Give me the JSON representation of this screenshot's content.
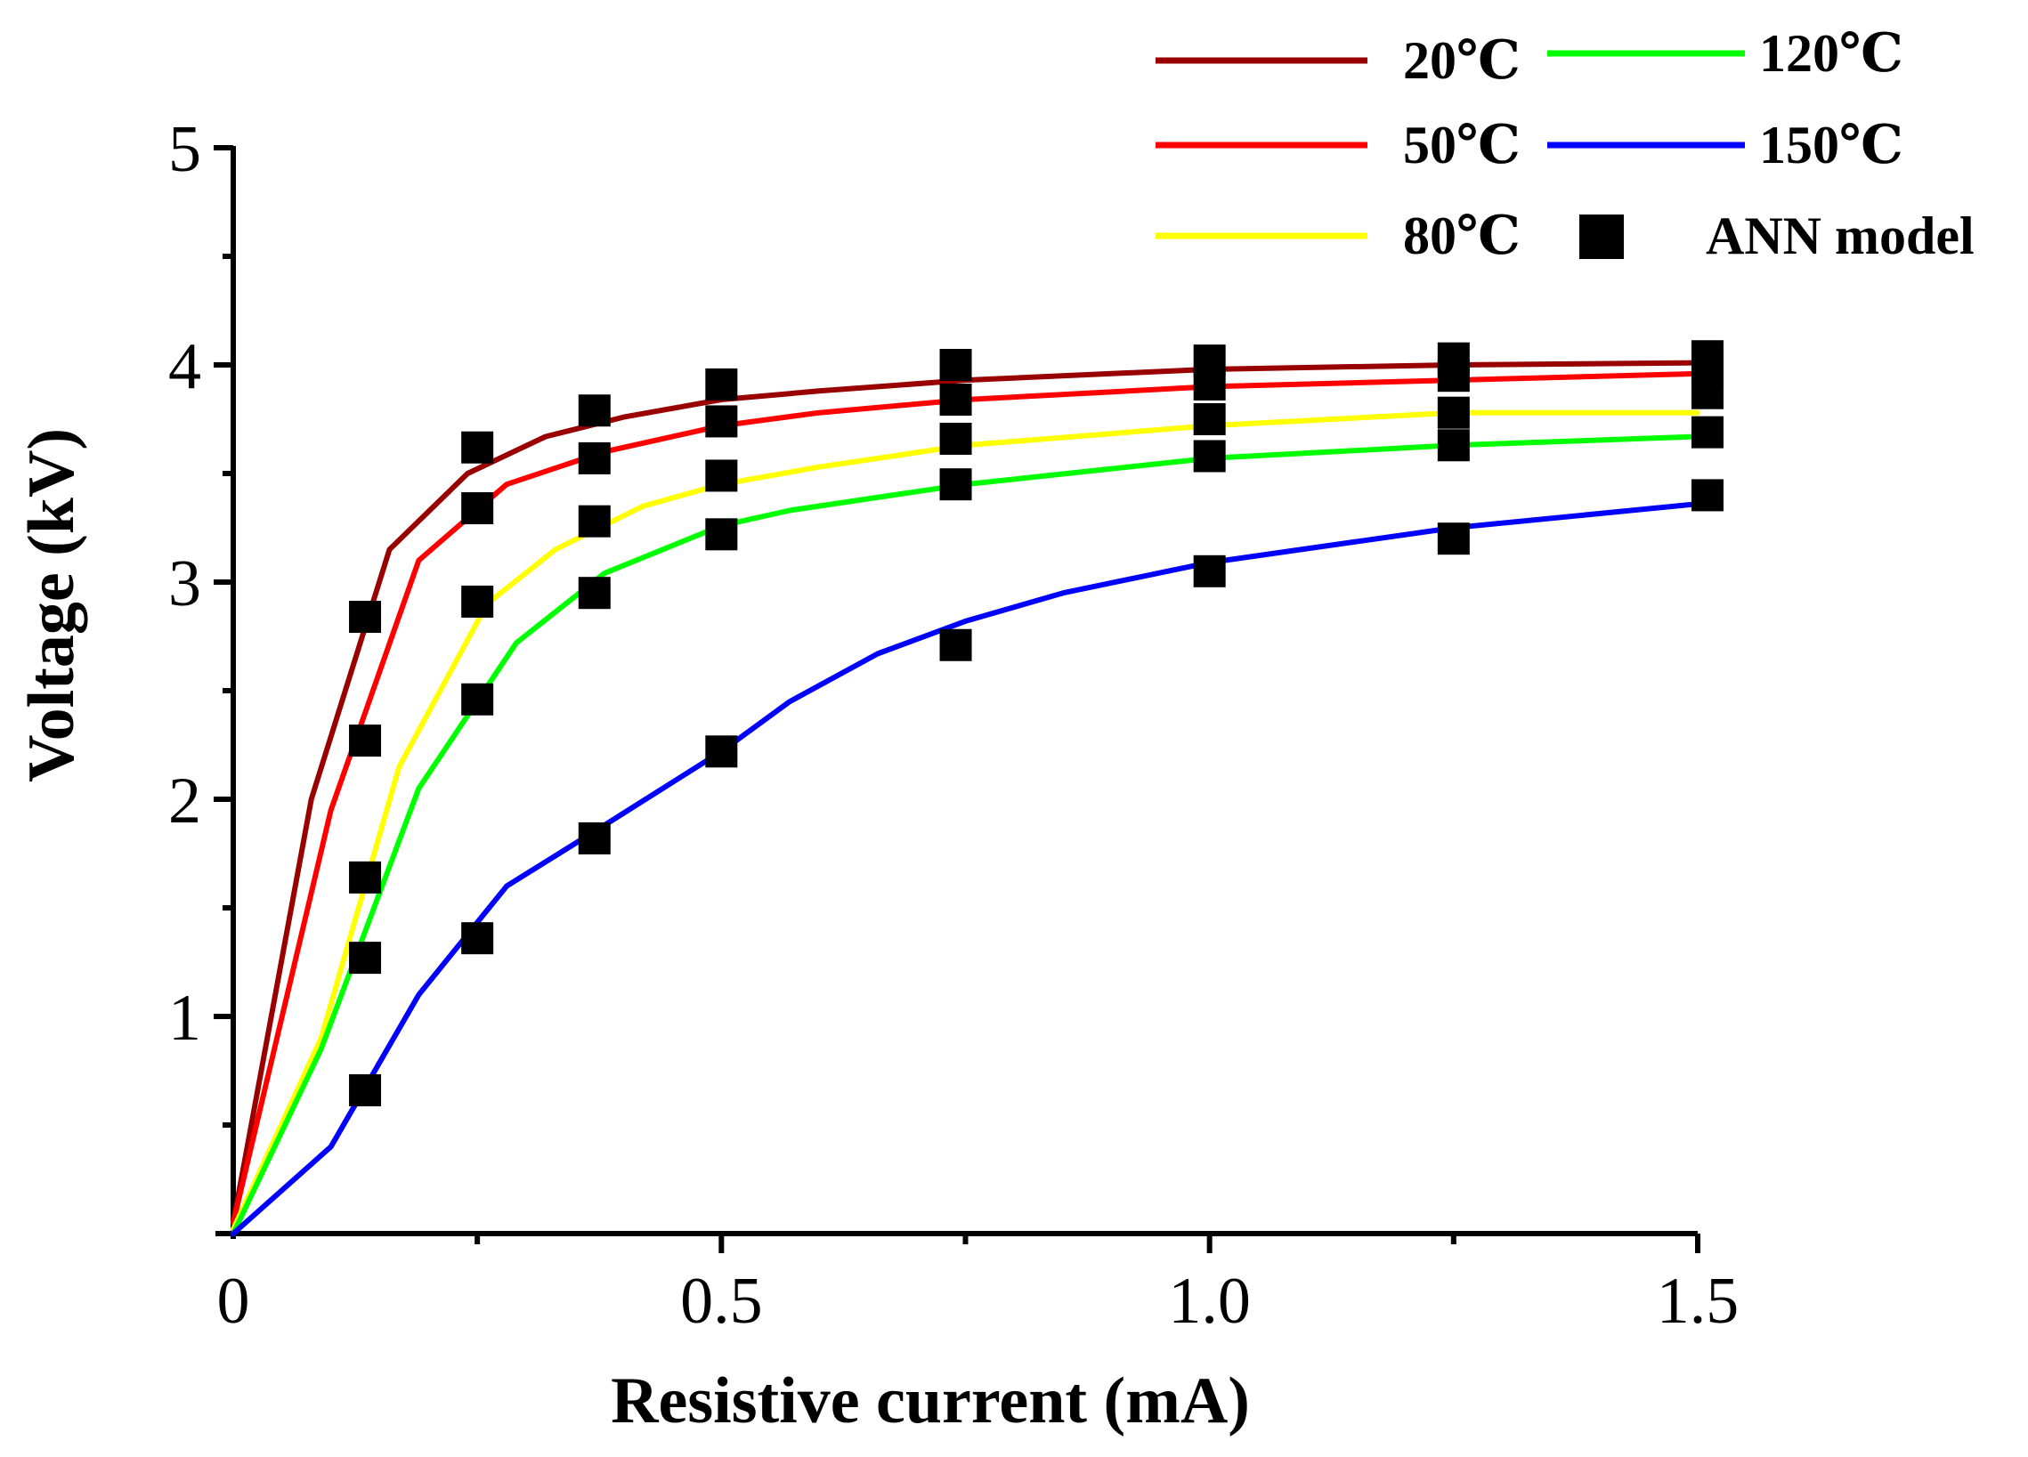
{
  "chart_data": {
    "type": "line",
    "title": "",
    "xlabel": "Resistive current (mA)",
    "ylabel": "Voltage (kV)",
    "xlim": [
      0,
      1.5
    ],
    "ylim": [
      0,
      5
    ],
    "xticks": [
      0,
      0.5,
      1.0,
      1.5
    ],
    "xtick_labels": [
      "0",
      "0.5",
      "1.0",
      "1.5"
    ],
    "yticks": [
      1,
      2,
      3,
      4,
      5
    ],
    "ytick_labels": [
      "1",
      "2",
      "3",
      "4",
      "5"
    ],
    "grid": false,
    "legend_position": "top-right",
    "series": [
      {
        "name": "20℃",
        "color": "#990000",
        "points": [
          [
            0,
            0.05
          ],
          [
            0.08,
            2.0
          ],
          [
            0.16,
            3.15
          ],
          [
            0.24,
            3.5
          ],
          [
            0.32,
            3.67
          ],
          [
            0.4,
            3.76
          ],
          [
            0.5,
            3.84
          ],
          [
            0.6,
            3.88
          ],
          [
            0.75,
            3.93
          ],
          [
            1.0,
            3.98
          ],
          [
            1.25,
            4.0
          ],
          [
            1.5,
            4.01
          ]
        ]
      },
      {
        "name": "50℃",
        "color": "#ff0000",
        "points": [
          [
            0,
            0.05
          ],
          [
            0.1,
            1.95
          ],
          [
            0.19,
            3.1
          ],
          [
            0.28,
            3.45
          ],
          [
            0.38,
            3.6
          ],
          [
            0.5,
            3.72
          ],
          [
            0.6,
            3.78
          ],
          [
            0.75,
            3.84
          ],
          [
            1.0,
            3.9
          ],
          [
            1.25,
            3.93
          ],
          [
            1.5,
            3.96
          ]
        ]
      },
      {
        "name": "80℃",
        "color": "#ffff00",
        "points": [
          [
            0,
            0.02
          ],
          [
            0.09,
            0.9
          ],
          [
            0.17,
            2.15
          ],
          [
            0.26,
            2.9
          ],
          [
            0.33,
            3.15
          ],
          [
            0.42,
            3.35
          ],
          [
            0.5,
            3.45
          ],
          [
            0.6,
            3.53
          ],
          [
            0.75,
            3.63
          ],
          [
            1.0,
            3.72
          ],
          [
            1.25,
            3.78
          ],
          [
            1.5,
            3.78
          ]
        ]
      },
      {
        "name": "120℃",
        "color": "#00ff00",
        "points": [
          [
            0,
            0.0
          ],
          [
            0.09,
            0.85
          ],
          [
            0.19,
            2.05
          ],
          [
            0.29,
            2.72
          ],
          [
            0.38,
            3.04
          ],
          [
            0.5,
            3.26
          ],
          [
            0.57,
            3.33
          ],
          [
            0.75,
            3.45
          ],
          [
            1.0,
            3.57
          ],
          [
            1.25,
            3.63
          ],
          [
            1.5,
            3.67
          ]
        ]
      },
      {
        "name": "150℃",
        "color": "#0000ff",
        "points": [
          [
            0,
            0.0
          ],
          [
            0.1,
            0.4
          ],
          [
            0.19,
            1.1
          ],
          [
            0.28,
            1.6
          ],
          [
            0.38,
            1.88
          ],
          [
            0.5,
            2.22
          ],
          [
            0.57,
            2.45
          ],
          [
            0.66,
            2.67
          ],
          [
            0.75,
            2.82
          ],
          [
            0.85,
            2.95
          ],
          [
            1.0,
            3.09
          ],
          [
            1.25,
            3.25
          ],
          [
            1.5,
            3.36
          ]
        ]
      }
    ],
    "markers": {
      "name": "ANN model",
      "color": "#000000",
      "points": [
        [
          0.135,
          2.84
        ],
        [
          0.135,
          2.27
        ],
        [
          0.135,
          1.64
        ],
        [
          0.135,
          1.27
        ],
        [
          0.135,
          0.66
        ],
        [
          0.25,
          3.62
        ],
        [
          0.25,
          3.34
        ],
        [
          0.25,
          2.91
        ],
        [
          0.25,
          2.46
        ],
        [
          0.25,
          1.36
        ],
        [
          0.37,
          3.79
        ],
        [
          0.37,
          3.57
        ],
        [
          0.37,
          3.28
        ],
        [
          0.37,
          2.95
        ],
        [
          0.37,
          1.82
        ],
        [
          0.5,
          3.91
        ],
        [
          0.5,
          3.74
        ],
        [
          0.5,
          3.49
        ],
        [
          0.5,
          3.22
        ],
        [
          0.5,
          2.22
        ],
        [
          0.74,
          4.0
        ],
        [
          0.74,
          3.84
        ],
        [
          0.74,
          3.66
        ],
        [
          0.74,
          3.45
        ],
        [
          0.74,
          2.71
        ],
        [
          1.0,
          4.02
        ],
        [
          1.0,
          3.91
        ],
        [
          1.0,
          3.75
        ],
        [
          1.0,
          3.58
        ],
        [
          1.0,
          3.05
        ],
        [
          1.25,
          4.03
        ],
        [
          1.25,
          3.95
        ],
        [
          1.25,
          3.78
        ],
        [
          1.25,
          3.63
        ],
        [
          1.25,
          3.2
        ],
        [
          1.51,
          4.04
        ],
        [
          1.51,
          3.97
        ],
        [
          1.51,
          3.87
        ],
        [
          1.51,
          3.69
        ],
        [
          1.51,
          3.4
        ]
      ]
    }
  }
}
